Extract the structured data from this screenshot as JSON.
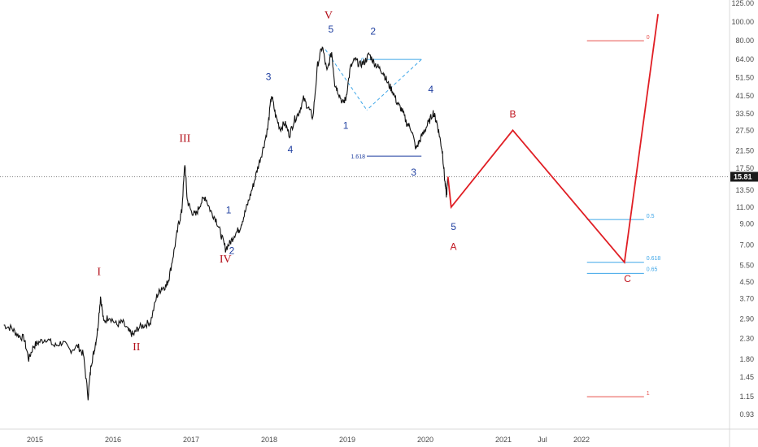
{
  "chart_data": {
    "type": "line",
    "title": "",
    "scale": "log",
    "grid": false,
    "ylim": [
      0.85,
      125
    ],
    "yticks": [
      "125.00",
      "100.00",
      "80.00",
      "64.00",
      "51.50",
      "41.50",
      "33.50",
      "27.50",
      "21.50",
      "17.50",
      "13.50",
      "11.00",
      "9.00",
      "7.00",
      "5.50",
      "4.50",
      "3.70",
      "2.90",
      "2.30",
      "1.80",
      "1.45",
      "1.15",
      "0.93"
    ],
    "ytick_values": [
      125,
      100,
      80,
      64,
      51.5,
      41.5,
      33.5,
      27.5,
      21.5,
      17.5,
      13.5,
      11,
      9,
      7,
      5.5,
      4.5,
      3.7,
      2.9,
      2.3,
      1.8,
      1.45,
      1.15,
      0.93
    ],
    "xticks": [
      "2015",
      "2016",
      "2017",
      "2018",
      "2019",
      "2020",
      "2021",
      "Jul",
      "2022"
    ],
    "xtick_values": [
      2015.0,
      2016.0,
      2017.0,
      2018.0,
      2019.0,
      2020.0,
      2021.0,
      2021.5,
      2022.0
    ],
    "current_price": {
      "label": "15.81",
      "value": 15.81
    },
    "price_series": [
      [
        2014.6,
        2.7
      ],
      [
        2014.7,
        2.6
      ],
      [
        2014.78,
        2.4
      ],
      [
        2014.86,
        2.3
      ],
      [
        2014.92,
        1.8
      ],
      [
        2014.98,
        2.1
      ],
      [
        2015.05,
        2.2
      ],
      [
        2015.15,
        2.3
      ],
      [
        2015.25,
        2.1
      ],
      [
        2015.35,
        2.2
      ],
      [
        2015.45,
        2.0
      ],
      [
        2015.55,
        2.1
      ],
      [
        2015.62,
        1.9
      ],
      [
        2015.68,
        1.15
      ],
      [
        2015.72,
        1.7
      ],
      [
        2015.76,
        2.0
      ],
      [
        2015.8,
        2.5
      ],
      [
        2015.84,
        3.8
      ],
      [
        2015.88,
        2.8
      ],
      [
        2015.95,
        3.0
      ],
      [
        2016.05,
        2.7
      ],
      [
        2016.12,
        2.8
      ],
      [
        2016.2,
        2.5
      ],
      [
        2016.26,
        2.4
      ],
      [
        2016.32,
        2.6
      ],
      [
        2016.4,
        2.7
      ],
      [
        2016.48,
        2.8
      ],
      [
        2016.56,
        3.8
      ],
      [
        2016.62,
        4.2
      ],
      [
        2016.68,
        4.3
      ],
      [
        2016.72,
        4.8
      ],
      [
        2016.78,
        6.5
      ],
      [
        2016.84,
        9.0
      ],
      [
        2016.88,
        10.5
      ],
      [
        2016.92,
        18.5
      ],
      [
        2016.95,
        12.0
      ],
      [
        2017.0,
        10.5
      ],
      [
        2017.06,
        10.0
      ],
      [
        2017.12,
        11.5
      ],
      [
        2017.18,
        12.5
      ],
      [
        2017.25,
        10.5
      ],
      [
        2017.32,
        9.5
      ],
      [
        2017.38,
        8.0
      ],
      [
        2017.44,
        6.7
      ],
      [
        2017.5,
        7.2
      ],
      [
        2017.56,
        8.0
      ],
      [
        2017.62,
        8.5
      ],
      [
        2017.68,
        10.0
      ],
      [
        2017.74,
        12.0
      ],
      [
        2017.8,
        14.5
      ],
      [
        2017.86,
        18.0
      ],
      [
        2017.92,
        22.0
      ],
      [
        2017.98,
        28.0
      ],
      [
        2018.03,
        42.0
      ],
      [
        2018.08,
        33.0
      ],
      [
        2018.14,
        28.0
      ],
      [
        2018.2,
        30.0
      ],
      [
        2018.26,
        26.0
      ],
      [
        2018.32,
        31.0
      ],
      [
        2018.38,
        34.0
      ],
      [
        2018.44,
        40.0
      ],
      [
        2018.5,
        36.0
      ],
      [
        2018.56,
        32.0
      ],
      [
        2018.62,
        60.0
      ],
      [
        2018.68,
        75.0
      ],
      [
        2018.74,
        55.0
      ],
      [
        2018.8,
        70.0
      ],
      [
        2018.84,
        48.0
      ],
      [
        2018.88,
        44.0
      ],
      [
        2018.94,
        38.0
      ],
      [
        2018.98,
        40.0
      ],
      [
        2019.04,
        58.0
      ],
      [
        2019.1,
        64.0
      ],
      [
        2019.16,
        60.0
      ],
      [
        2019.22,
        62.0
      ],
      [
        2019.28,
        68.0
      ],
      [
        2019.34,
        62.0
      ],
      [
        2019.4,
        58.0
      ],
      [
        2019.46,
        55.0
      ],
      [
        2019.52,
        48.0
      ],
      [
        2019.58,
        44.0
      ],
      [
        2019.64,
        38.0
      ],
      [
        2019.7,
        35.0
      ],
      [
        2019.76,
        30.0
      ],
      [
        2019.82,
        28.0
      ],
      [
        2019.88,
        22.0
      ],
      [
        2019.92,
        24.0
      ],
      [
        2019.98,
        27.0
      ],
      [
        2020.04,
        30.0
      ],
      [
        2020.1,
        34.0
      ],
      [
        2020.14,
        31.0
      ],
      [
        2020.18,
        26.0
      ],
      [
        2020.22,
        21.0
      ],
      [
        2020.25,
        15.0
      ],
      [
        2020.27,
        12.5
      ],
      [
        2020.29,
        15.81
      ]
    ],
    "projection": [
      [
        2020.29,
        15.81
      ],
      [
        2020.33,
        11.0
      ],
      [
        2021.12,
        27.5
      ],
      [
        2022.55,
        5.7
      ],
      [
        2022.98,
        110.0
      ]
    ],
    "triangle": [
      [
        2019.25,
        64.0
      ],
      [
        2019.95,
        64.0
      ],
      [
        2019.25,
        35.0
      ]
    ],
    "fib_levels": [
      {
        "label": "0",
        "value": 80.0,
        "color": "#e8504c",
        "x0": 2022.07,
        "x1": 2022.8
      },
      {
        "label": "1.618",
        "value": 20.2,
        "color": "#1f3fa0",
        "x0": 2019.25,
        "x1": 2019.95
      },
      {
        "label": "0.5",
        "value": 9.5,
        "color": "#3ea6e8",
        "x0": 2022.07,
        "x1": 2022.8
      },
      {
        "label": "0.618",
        "value": 5.7,
        "color": "#3ea6e8",
        "x0": 2022.07,
        "x1": 2022.8
      },
      {
        "label": "0.65",
        "value": 5.0,
        "color": "#3ea6e8",
        "x0": 2022.07,
        "x1": 2022.8
      },
      {
        "label": "1",
        "value": 1.15,
        "color": "#e8504c",
        "x0": 2022.07,
        "x1": 2022.8
      }
    ],
    "wave_labels": [
      {
        "text": "I",
        "x": 2015.82,
        "y": 4.9,
        "style": "red"
      },
      {
        "text": "II",
        "x": 2016.3,
        "y": 2.0,
        "style": "red"
      },
      {
        "text": "III",
        "x": 2016.92,
        "y": 24.0,
        "style": "red"
      },
      {
        "text": "IV",
        "x": 2017.44,
        "y": 5.7,
        "style": "red"
      },
      {
        "text": "V",
        "x": 2018.76,
        "y": 104.0,
        "style": "red"
      },
      {
        "text": "1",
        "x": 2017.48,
        "y": 10.2,
        "style": "blue"
      },
      {
        "text": "2",
        "x": 2017.52,
        "y": 6.3,
        "style": "blue"
      },
      {
        "text": "3",
        "x": 2017.99,
        "y": 50.0,
        "style": "blue"
      },
      {
        "text": "4",
        "x": 2018.27,
        "y": 21.0,
        "style": "blue"
      },
      {
        "text": "5",
        "x": 2018.79,
        "y": 88.0,
        "style": "blue"
      },
      {
        "text": "1",
        "x": 2018.98,
        "y": 28.0,
        "style": "blue"
      },
      {
        "text": "2",
        "x": 2019.33,
        "y": 86.0,
        "style": "blue"
      },
      {
        "text": "3",
        "x": 2019.85,
        "y": 16.0,
        "style": "blue"
      },
      {
        "text": "4",
        "x": 2020.07,
        "y": 43.0,
        "style": "blue"
      },
      {
        "text": "5",
        "x": 2020.36,
        "y": 8.4,
        "style": "blue"
      },
      {
        "text": "A",
        "x": 2020.36,
        "y": 6.6,
        "style": "redsans"
      },
      {
        "text": "B",
        "x": 2021.12,
        "y": 32.0,
        "style": "redsans"
      },
      {
        "text": "C",
        "x": 2022.59,
        "y": 4.5,
        "style": "redsans"
      }
    ]
  },
  "colors": {
    "price": "#111111",
    "projection": "#e01e24",
    "fib_red": "#e8504c",
    "fib_blue": "#3ea6e8",
    "triangle": "#3ea6e8",
    "badge_bg": "#1a1a1a",
    "axis_text": "#4a4a4a"
  }
}
